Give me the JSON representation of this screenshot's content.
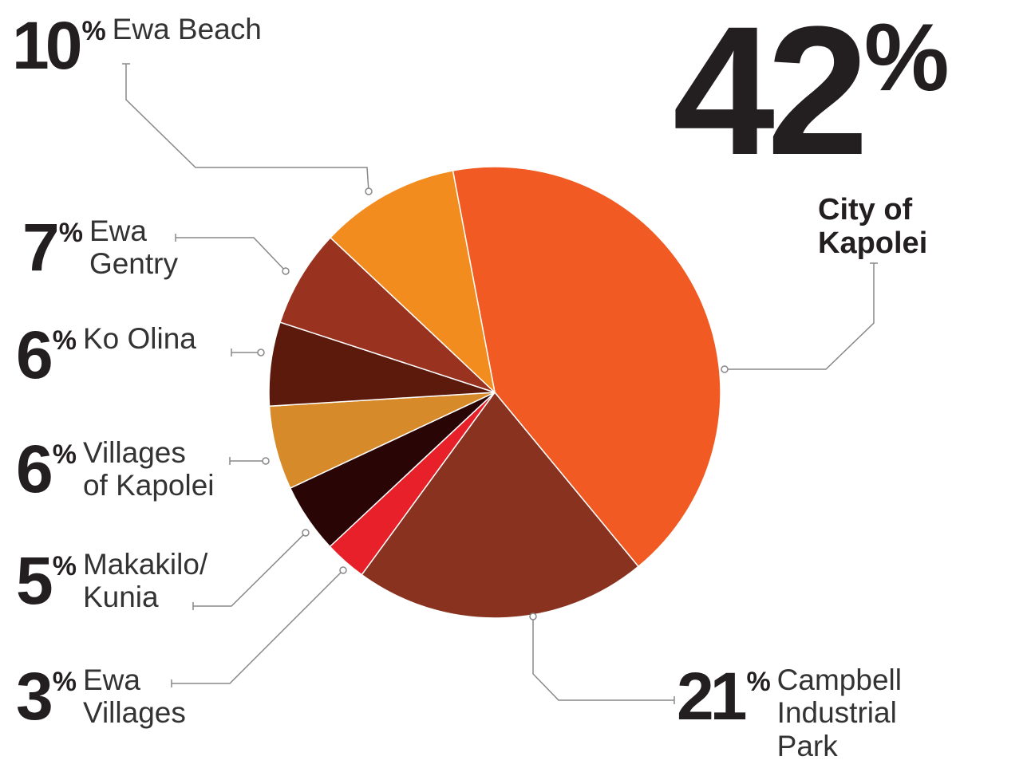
{
  "chart_data": {
    "type": "pie",
    "unit": "%",
    "categories": [
      "City of\nKapolei",
      "Campbell\nIndustrial\nPark",
      "Ewa\nVillages",
      "Makakilo/\nKunia",
      "Villages\nof Kapolei",
      "Ko Olina",
      "Ewa\nGentry",
      "Ewa Beach"
    ],
    "values": [
      42,
      21,
      3,
      5,
      6,
      6,
      7,
      10
    ],
    "colors": [
      "#f15a22",
      "#8a3220",
      "#e8202a",
      "#2a0505",
      "#d68a2a",
      "#5c1a0c",
      "#9a3220",
      "#f28c1e"
    ]
  }
}
